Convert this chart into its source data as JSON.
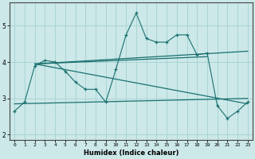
{
  "xlabel": "Humidex (Indice chaleur)",
  "xlim": [
    -0.5,
    23.5
  ],
  "ylim": [
    1.85,
    5.65
  ],
  "yticks": [
    2,
    3,
    4,
    5
  ],
  "xticks": [
    0,
    1,
    2,
    3,
    4,
    5,
    6,
    7,
    8,
    9,
    10,
    11,
    12,
    13,
    14,
    15,
    16,
    17,
    18,
    19,
    20,
    21,
    22,
    23
  ],
  "bg_color": "#cce8e8",
  "grid_color": "#aad4d4",
  "line_color": "#1a7070",
  "zigzag": {
    "x": [
      0,
      1,
      2,
      3,
      4,
      5,
      6,
      7,
      8,
      9,
      10,
      11,
      12,
      13,
      14,
      15,
      16,
      17,
      18,
      19,
      20,
      21,
      22,
      23
    ],
    "y": [
      2.65,
      2.9,
      3.9,
      4.05,
      4.0,
      3.75,
      3.45,
      3.25,
      3.25,
      2.9,
      3.8,
      4.75,
      5.35,
      4.65,
      4.55,
      4.55,
      4.75,
      4.75,
      4.2,
      4.25,
      2.8,
      2.45,
      2.65,
      2.9
    ]
  },
  "lines": [
    {
      "x": [
        2,
        23
      ],
      "y": [
        3.95,
        2.85
      ]
    },
    {
      "x": [
        2,
        19
      ],
      "y": [
        3.95,
        4.15
      ]
    },
    {
      "x": [
        2,
        23
      ],
      "y": [
        3.95,
        4.3
      ]
    },
    {
      "x": [
        0,
        23
      ],
      "y": [
        2.85,
        3.0
      ]
    }
  ]
}
